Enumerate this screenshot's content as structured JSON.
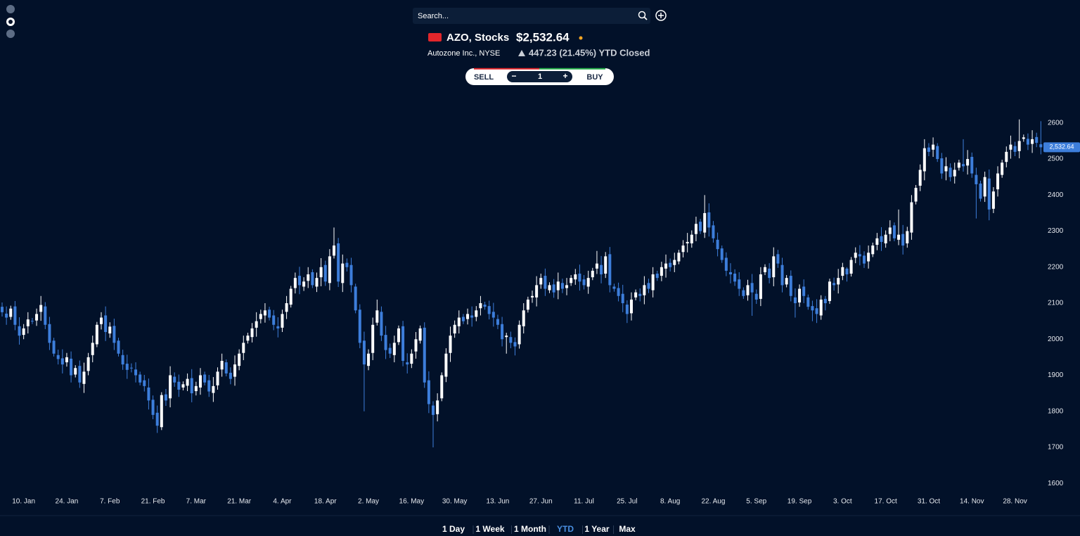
{
  "header": {
    "search_placeholder": "Search...",
    "symbol": "AZO, Stocks",
    "price": "$2,532.64",
    "company": "Autozone Inc., NYSE",
    "change": "447.23 (21.45%) YTD Closed"
  },
  "trade": {
    "sell": "SELL",
    "minus": "−",
    "quantity": 1,
    "plus": "+",
    "buy": "BUY"
  },
  "ranges": [
    {
      "label": "1 Day",
      "active": false
    },
    {
      "label": "1 Week",
      "active": false
    },
    {
      "label": "1 Month",
      "active": false
    },
    {
      "label": "YTD",
      "active": true
    },
    {
      "label": "1 Year",
      "active": false
    },
    {
      "label": "Max",
      "active": false
    }
  ],
  "chart_data": {
    "type": "candlestick",
    "up_color": "#ffffff",
    "down_color": "#3d7edb",
    "ylim": [
      1575,
      2670
    ],
    "yticks": [
      1600,
      1700,
      1800,
      1900,
      2000,
      2100,
      2200,
      2300,
      2400,
      2500,
      2600
    ],
    "last_value_label": "2,532.64",
    "categories": [
      null,
      null,
      null,
      null,
      null,
      "10. Jan",
      null,
      null,
      null,
      null,
      null,
      null,
      null,
      null,
      null,
      "24. Jan",
      null,
      null,
      null,
      null,
      null,
      null,
      null,
      null,
      null,
      "7. Feb",
      null,
      null,
      null,
      null,
      null,
      null,
      null,
      null,
      null,
      "21. Feb",
      null,
      null,
      null,
      null,
      null,
      null,
      null,
      null,
      null,
      "7. Mar",
      null,
      null,
      null,
      null,
      null,
      null,
      null,
      null,
      null,
      "21. Mar",
      null,
      null,
      null,
      null,
      null,
      null,
      null,
      null,
      null,
      "4. Apr",
      null,
      null,
      null,
      null,
      null,
      null,
      null,
      null,
      null,
      "18. Apr",
      null,
      null,
      null,
      null,
      null,
      null,
      null,
      null,
      null,
      "2. May",
      null,
      null,
      null,
      null,
      null,
      null,
      null,
      null,
      null,
      "16. May",
      null,
      null,
      null,
      null,
      null,
      null,
      null,
      null,
      null,
      "30. May",
      null,
      null,
      null,
      null,
      null,
      null,
      null,
      null,
      null,
      "13. Jun",
      null,
      null,
      null,
      null,
      null,
      null,
      null,
      null,
      null,
      "27. Jun",
      null,
      null,
      null,
      null,
      null,
      null,
      null,
      null,
      null,
      "11. Jul",
      null,
      null,
      null,
      null,
      null,
      null,
      null,
      null,
      null,
      "25. Jul",
      null,
      null,
      null,
      null,
      null,
      null,
      null,
      null,
      null,
      "8. Aug",
      null,
      null,
      null,
      null,
      null,
      null,
      null,
      null,
      null,
      "22. Aug",
      null,
      null,
      null,
      null,
      null,
      null,
      null,
      null,
      null,
      "5. Sep",
      null,
      null,
      null,
      null,
      null,
      null,
      null,
      null,
      null,
      "19. Sep",
      null,
      null,
      null,
      null,
      null,
      null,
      null,
      null,
      null,
      "3. Oct",
      null,
      null,
      null,
      null,
      null,
      null,
      null,
      null,
      null,
      "17. Oct",
      null,
      null,
      null,
      null,
      null,
      null,
      null,
      null,
      null,
      "31. Oct",
      null,
      null,
      null,
      null,
      null,
      null,
      null,
      null,
      null,
      "14. Nov",
      null,
      null,
      null,
      null,
      null,
      null,
      null,
      null,
      null,
      "28. Nov",
      null,
      null,
      null,
      null,
      null,
      null
    ],
    "open": [
      2090,
      2071,
      2062,
      2091,
      2036,
      2012,
      2036,
      2051,
      2052,
      2076,
      2091,
      2042,
      1996,
      1956,
      1947,
      1936,
      1946,
      1902,
      1926,
      1876,
      1912,
      1956,
      1986,
      2042,
      2066,
      2016,
      2037,
      1996,
      1956,
      1932,
      1921,
      1916,
      1902,
      1886,
      1866,
      1832,
      1796,
      1756,
      1847,
      1836,
      1896,
      1882,
      1866,
      1871,
      1892,
      1856,
      1866,
      1902,
      1886,
      1851,
      1872,
      1916,
      1936,
      1907,
      1896,
      1926,
      1962,
      1996,
      2006,
      2032,
      2056,
      2066,
      2082,
      2066,
      2036,
      2032,
      2076,
      2096,
      2142,
      2176,
      2146,
      2162,
      2186,
      2146,
      2172,
      2206,
      2156,
      2232,
      2266,
      2156,
      2212,
      2206,
      2146,
      2082,
      1996,
      1926,
      1962,
      2046,
      2076,
      2012,
      1976,
      1956,
      1992,
      2036,
      1936,
      1932,
      1966,
      1996,
      2032,
      1886,
      1816,
      1792,
      1836,
      1896,
      1962,
      2016,
      2036,
      2062,
      2056,
      2066,
      2062,
      2086,
      2096,
      2092,
      2076,
      2056,
      2042,
      2006,
      2006,
      1992,
      1986,
      2036,
      2082,
      2116,
      2116,
      2152,
      2176,
      2136,
      2152,
      2136,
      2156,
      2142,
      2156,
      2166,
      2182,
      2166,
      2146,
      2172,
      2196,
      2206,
      2182,
      2236,
      2146,
      2142,
      2126,
      2096,
      2072,
      2116,
      2126,
      2122,
      2156,
      2136,
      2182,
      2176,
      2196,
      2212,
      2206,
      2216,
      2242,
      2266,
      2266,
      2292,
      2326,
      2296,
      2352,
      2316,
      2276,
      2252,
      2226,
      2186,
      2182,
      2166,
      2136,
      2122,
      2156,
      2126,
      2112,
      2186,
      2196,
      2172,
      2236,
      2206,
      2152,
      2176,
      2116,
      2102,
      2146,
      2116,
      2092,
      2086,
      2066,
      2112,
      2106,
      2156,
      2152,
      2176,
      2196,
      2182,
      2226,
      2236,
      2232,
      2216,
      2236,
      2262,
      2286,
      2266,
      2292,
      2316,
      2276,
      2292,
      2266,
      2296,
      2382,
      2426,
      2466,
      2532,
      2526,
      2536,
      2502,
      2466,
      2476,
      2452,
      2476,
      2486,
      2482,
      2506,
      2456,
      2432,
      2396,
      2446,
      2362,
      2416,
      2456,
      2492,
      2526,
      2536,
      2522,
      2556,
      2556,
      2542,
      2561,
      2541
    ],
    "high": [
      2102,
      2091,
      2093,
      2106,
      2061,
      2042,
      2075,
      2059,
      2085,
      2120,
      2103,
      2062,
      2004,
      1971,
      1972,
      1962,
      1966,
      1928,
      1941,
      1935,
      1962,
      2010,
      2048,
      2075,
      2091,
      2047,
      2057,
      2004,
      1971,
      1957,
      1933,
      1936,
      1910,
      1901,
      1891,
      1844,
      1816,
      1853,
      1862,
      1925,
      1908,
      1902,
      1883,
      1905,
      1917,
      1882,
      1920,
      1910,
      1901,
      1895,
      1922,
      1960,
      1944,
      1922,
      1955,
      1972,
      2010,
      2018,
      2045,
      2075,
      2082,
      2100,
      2090,
      2081,
      2061,
      2082,
      2120,
      2148,
      2185,
      2201,
      2172,
      2200,
      2194,
      2185,
      2225,
      2218,
      2250,
      2310,
      2281,
      2235,
      2224,
      2226,
      2154,
      2097,
      2021,
      1972,
      2060,
      2110,
      2091,
      2037,
      1988,
      2010,
      2038,
      2051,
      1961,
      1972,
      2020,
      2038,
      2047,
      1911,
      1828,
      1850,
      1908,
      1975,
      2035,
      2052,
      2080,
      2070,
      2085,
      2091,
      2092,
      2120,
      2104,
      2107,
      2101,
      2068,
      2062,
      2018,
      2021,
      2005,
      2052,
      2100,
      2118,
      2135,
      2175,
      2182,
      2196,
      2158,
      2167,
      2185,
      2168,
      2170,
      2178,
      2195,
      2207,
      2178,
      2190,
      2198,
      2245,
      2231,
      2242,
      2256,
      2154,
      2157,
      2151,
      2108,
      2130,
      2138,
      2141,
      2175,
      2168,
      2200,
      2190,
      2215,
      2235,
      2224,
      2240,
      2248,
      2275,
      2295,
      2302,
      2340,
      2334,
      2400,
      2377,
      2328,
      2296,
      2260,
      2241,
      2211,
      2194,
      2186,
      2144,
      2165,
      2181,
      2138,
      2200,
      2208,
      2211,
      2255,
      2248,
      2226,
      2178,
      2191,
      2141,
      2152,
      2166,
      2124,
      2107,
      2111,
      2122,
      2120,
      2168,
      2171,
      2195,
      2212,
      2200,
      2228,
      2255,
      2261,
      2244,
      2260,
      2268,
      2295,
      2311,
      2302,
      2330,
      2324,
      2360,
      2317,
      2312,
      2400,
      2428,
      2485,
      2555,
      2544,
      2560,
      2544,
      2517,
      2505,
      2488,
      2490,
      2498,
      2555,
      2525,
      2518,
      2476,
      2440,
      2465,
      2471,
      2422,
      2480,
      2498,
      2535,
      2565,
      2548,
      2610,
      2568,
      2571,
      2580,
      2573,
      2605
    ],
    "low": [
      2063,
      2040,
      2054,
      2025,
      1985,
      2000,
      2016,
      2042,
      2037,
      2051,
      2028,
      1970,
      1952,
      1930,
      1905,
      1924,
      1880,
      1894,
      1865,
      1851,
      1900,
      1936,
      1978,
      2027,
      1995,
      2004,
      1970,
      1952,
      1915,
      1890,
      1908,
      1880,
      1872,
      1855,
      1805,
      1778,
      1740,
      1748,
      1815,
      1811,
      1868,
      1840,
      1858,
      1856,
      1825,
      1844,
      1846,
      1872,
      1840,
      1826,
      1860,
      1896,
      1897,
      1875,
      1871,
      1914,
      1942,
      1988,
      1991,
      2007,
      2044,
      2046,
      2052,
      2025,
      2005,
      2020,
      2056,
      2088,
      2127,
      2125,
      2134,
      2142,
      2142,
      2131,
      2147,
      2148,
      2136,
      2224,
      2145,
      2131,
      2188,
      2130,
      2072,
      1975,
      1800,
      1914,
      1942,
      2038,
      1995,
      1945,
      1948,
      1936,
      1984,
      1925,
      1905,
      1920,
      1946,
      1988,
      1865,
      1795,
      1700,
      1772,
      1828,
      1881,
      1937,
      2004,
      2016,
      2042,
      2041,
      2035,
      2050,
      2066,
      2082,
      2055,
      2035,
      2028,
      1980,
      1960,
      1975,
      1955,
      1974,
      2016,
      2074,
      2101,
      2091,
      2140,
      2120,
      2128,
      2115,
      2111,
      2128,
      2122,
      2148,
      2151,
      2135,
      2138,
      2126,
      2164,
      2181,
      2155,
      2170,
      2130,
      2132,
      2105,
      2075,
      2045,
      2052,
      2108,
      2105,
      2097,
      2128,
      2116,
      2162,
      2161,
      2171,
      2188,
      2186,
      2208,
      2227,
      2241,
      2254,
      2272,
      2292,
      2281,
      2285,
      2268,
      2230,
      2212,
      2175,
      2155,
      2148,
      2120,
      2112,
      2107,
      2065,
      2098,
      2092,
      2178,
      2155,
      2147,
      2198,
      2130,
      2144,
      2105,
      2060,
      2090,
      2100,
      2082,
      2050,
      2045,
      2054,
      2080,
      2098,
      2135,
      2127,
      2164,
      2160,
      2174,
      2211,
      2205,
      2198,
      2196,
      2228,
      2247,
      2245,
      2254,
      2272,
      2272,
      2261,
      2235,
      2254,
      2276,
      2374,
      2411,
      2441,
      2508,
      2506,
      2492,
      2445,
      2441,
      2438,
      2432,
      2468,
      2465,
      2457,
      2448,
      2335,
      2382,
      2381,
      2330,
      2350,
      2396,
      2448,
      2477,
      2501,
      2508,
      2502,
      2548,
      2525,
      2517,
      2533,
      2513
    ],
    "close": [
      2075,
      2060,
      2085,
      2040,
      2010,
      2030,
      2055,
      2050,
      2070,
      2095,
      2040,
      1990,
      1960,
      1945,
      1930,
      1950,
      1900,
      1920,
      1880,
      1910,
      1950,
      1990,
      2040,
      2060,
      2020,
      2035,
      1990,
      1960,
      1930,
      1915,
      1920,
      1900,
      1880,
      1870,
      1830,
      1790,
      1760,
      1845,
      1830,
      1900,
      1880,
      1860,
      1875,
      1890,
      1850,
      1870,
      1900,
      1880,
      1855,
      1870,
      1910,
      1940,
      1905,
      1890,
      1930,
      1960,
      1990,
      2010,
      2030,
      2050,
      2070,
      2080,
      2060,
      2040,
      2030,
      2070,
      2100,
      2140,
      2170,
      2150,
      2160,
      2180,
      2150,
      2170,
      2200,
      2160,
      2230,
      2260,
      2160,
      2210,
      2200,
      2150,
      2080,
      1990,
      1930,
      1960,
      2040,
      2080,
      2010,
      1970,
      1960,
      1990,
      2030,
      1940,
      1930,
      1960,
      2000,
      2030,
      1880,
      1820,
      1790,
      1830,
      1900,
      1960,
      2010,
      2040,
      2060,
      2050,
      2070,
      2060,
      2080,
      2100,
      2090,
      2070,
      2060,
      2040,
      2000,
      2010,
      1990,
      1980,
      2040,
      2080,
      2110,
      2120,
      2150,
      2170,
      2140,
      2150,
      2130,
      2160,
      2140,
      2150,
      2170,
      2180,
      2160,
      2150,
      2170,
      2190,
      2210,
      2180,
      2230,
      2150,
      2140,
      2120,
      2100,
      2070,
      2110,
      2130,
      2120,
      2150,
      2140,
      2180,
      2170,
      2200,
      2210,
      2200,
      2220,
      2240,
      2260,
      2270,
      2290,
      2320,
      2300,
      2350,
      2310,
      2280,
      2250,
      2220,
      2190,
      2180,
      2160,
      2140,
      2120,
      2150,
      2130,
      2110,
      2180,
      2200,
      2170,
      2230,
      2210,
      2150,
      2170,
      2120,
      2100,
      2140,
      2120,
      2090,
      2080,
      2070,
      2110,
      2100,
      2160,
      2150,
      2170,
      2200,
      2180,
      2220,
      2240,
      2230,
      2210,
      2240,
      2260,
      2280,
      2270,
      2290,
      2310,
      2280,
      2290,
      2260,
      2300,
      2380,
      2420,
      2470,
      2530,
      2520,
      2540,
      2500,
      2460,
      2480,
      2450,
      2470,
      2490,
      2480,
      2500,
      2460,
      2430,
      2390,
      2450,
      2360,
      2410,
      2460,
      2490,
      2520,
      2540,
      2520,
      2550,
      2560,
      2540,
      2555,
      2545,
      2532.64
    ]
  }
}
